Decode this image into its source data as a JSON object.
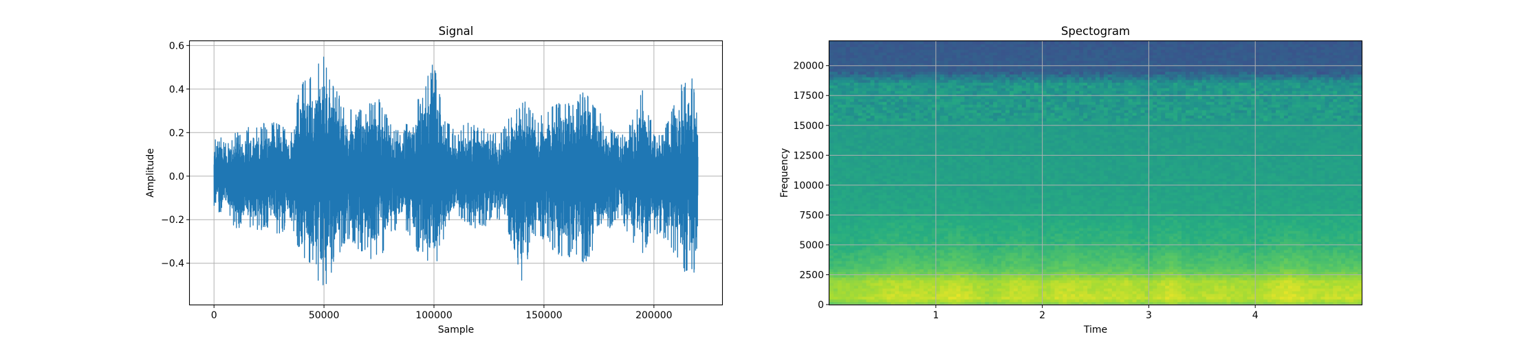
{
  "figure": {
    "colors": {
      "signal_line": "#1f77b4",
      "grid": "#b0b0b0",
      "axes": "#000000",
      "background": "#ffffff"
    }
  },
  "chart_data": [
    {
      "type": "line",
      "title": "Signal",
      "xlabel": "Sample",
      "ylabel": "Amplitude",
      "xlim": [
        -11000,
        231000
      ],
      "ylim": [
        -0.59,
        0.62
      ],
      "grid": true,
      "x_ticks": [
        0,
        50000,
        100000,
        150000,
        200000
      ],
      "x_tick_labels": [
        "0",
        "50000",
        "100000",
        "150000",
        "200000"
      ],
      "y_ticks": [
        -0.4,
        -0.2,
        0.0,
        0.2,
        0.4,
        0.6
      ],
      "y_tick_labels": [
        "−0.4",
        "−0.2",
        "0.0",
        "0.2",
        "0.4",
        "0.6"
      ],
      "series": [
        {
          "color": "#1f77b4",
          "description": "audio waveform, ~220500 samples",
          "envelope": {
            "x": [
              0,
              2000,
              5000,
              10000,
              15000,
              20000,
              25000,
              30000,
              35000,
              40000,
              45000,
              50000,
              55000,
              60000,
              65000,
              70000,
              75000,
              80000,
              85000,
              90000,
              95000,
              100000,
              105000,
              110000,
              115000,
              120000,
              125000,
              130000,
              135000,
              140000,
              145000,
              150000,
              155000,
              160000,
              165000,
              170000,
              175000,
              180000,
              185000,
              190000,
              195000,
              200000,
              205000,
              210000,
              215000,
              220000
            ],
            "max": [
              0.16,
              0.23,
              0.15,
              0.2,
              0.23,
              0.24,
              0.25,
              0.25,
              0.22,
              0.45,
              0.5,
              0.57,
              0.42,
              0.32,
              0.3,
              0.34,
              0.36,
              0.25,
              0.2,
              0.3,
              0.4,
              0.54,
              0.28,
              0.2,
              0.25,
              0.24,
              0.22,
              0.2,
              0.3,
              0.37,
              0.29,
              0.28,
              0.35,
              0.38,
              0.36,
              0.42,
              0.3,
              0.22,
              0.18,
              0.25,
              0.41,
              0.2,
              0.22,
              0.4,
              0.45,
              0.45
            ],
            "min": [
              -0.18,
              -0.18,
              -0.14,
              -0.25,
              -0.24,
              -0.26,
              -0.24,
              -0.28,
              -0.2,
              -0.42,
              -0.45,
              -0.53,
              -0.4,
              -0.3,
              -0.33,
              -0.38,
              -0.4,
              -0.28,
              -0.22,
              -0.3,
              -0.4,
              -0.48,
              -0.26,
              -0.18,
              -0.22,
              -0.25,
              -0.22,
              -0.2,
              -0.3,
              -0.52,
              -0.27,
              -0.29,
              -0.35,
              -0.38,
              -0.4,
              -0.39,
              -0.31,
              -0.25,
              -0.2,
              -0.3,
              -0.36,
              -0.27,
              -0.29,
              -0.38,
              -0.47,
              -0.46
            ]
          }
        }
      ]
    },
    {
      "type": "heatmap",
      "title": "Spectogram",
      "xlabel": "Time",
      "ylabel": "Frequency",
      "xlim": [
        0,
        5.0
      ],
      "ylim": [
        0,
        22050
      ],
      "grid": true,
      "colormap": "viridis",
      "x_ticks": [
        1,
        2,
        3,
        4
      ],
      "x_tick_labels": [
        "1",
        "2",
        "3",
        "4"
      ],
      "y_ticks": [
        0,
        2500,
        5000,
        7500,
        10000,
        12500,
        15000,
        17500,
        20000
      ],
      "y_tick_labels": [
        "0",
        "2500",
        "5000",
        "7500",
        "10000",
        "12500",
        "15000",
        "17500",
        "20000"
      ],
      "frequency_profile": {
        "frequency": [
          0,
          500,
          1000,
          2000,
          2500,
          3000,
          4000,
          5000,
          6500,
          8000,
          10000,
          14000,
          16000,
          17000,
          18500,
          19500,
          22050
        ],
        "level": [
          0.8,
          0.92,
          0.9,
          0.88,
          0.8,
          0.74,
          0.7,
          0.66,
          0.63,
          0.6,
          0.58,
          0.56,
          0.55,
          0.54,
          0.53,
          0.3,
          0.28
        ]
      },
      "time_activity": {
        "time": [
          0.0,
          0.3,
          0.6,
          1.0,
          1.2,
          1.5,
          1.8,
          2.0,
          2.2,
          2.5,
          2.8,
          3.0,
          3.2,
          3.4,
          3.7,
          4.0,
          4.3,
          4.6,
          5.0
        ],
        "level": [
          0.3,
          0.4,
          0.7,
          0.6,
          0.85,
          0.4,
          0.75,
          0.5,
          0.75,
          0.6,
          0.7,
          0.45,
          0.85,
          0.5,
          0.6,
          0.45,
          0.9,
          0.6,
          0.7
        ]
      }
    }
  ]
}
